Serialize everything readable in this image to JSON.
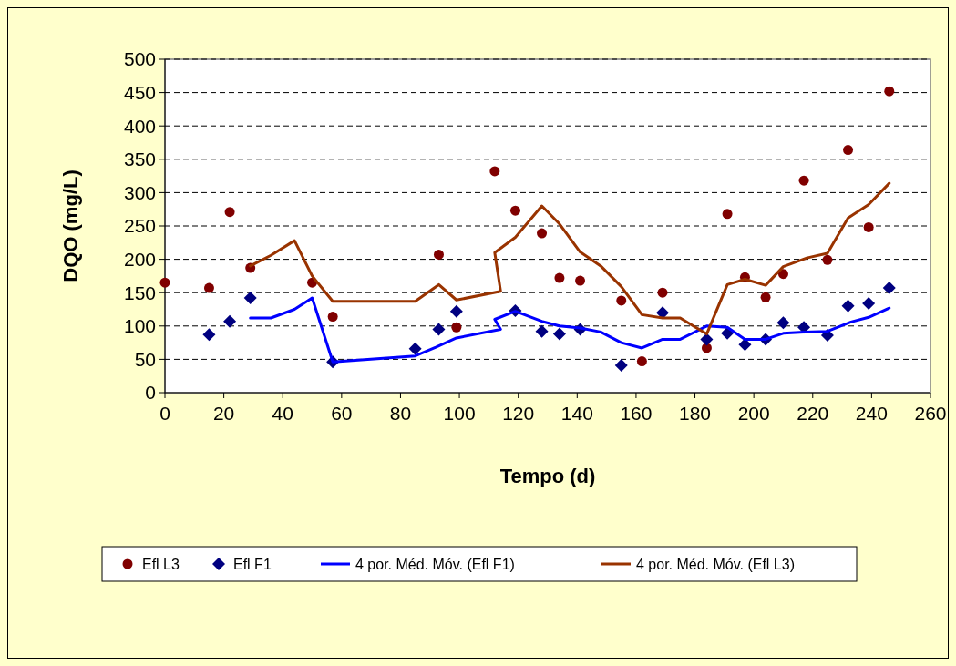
{
  "chart_data": {
    "type": "scatter",
    "xlabel": "Tempo (d)",
    "ylabel": "DQO (mg/L)",
    "xlim": [
      0,
      260
    ],
    "xticks": [
      0,
      20,
      40,
      60,
      80,
      100,
      120,
      140,
      160,
      180,
      200,
      220,
      240,
      260
    ],
    "ylim": [
      0,
      500
    ],
    "yticks": [
      0,
      50,
      100,
      150,
      200,
      250,
      300,
      350,
      400,
      450,
      500
    ],
    "grid": "y",
    "legend": "bottom",
    "series": [
      {
        "name": "Efl L3",
        "marker": "circle",
        "color": "#800000",
        "x": [
          0,
          15,
          22,
          29,
          50,
          57,
          93,
          99,
          112,
          119,
          128,
          134,
          141,
          155,
          162,
          169,
          184,
          191,
          197,
          204,
          210,
          217,
          225,
          232,
          239,
          246
        ],
        "values": [
          165,
          157,
          271,
          187,
          165,
          114,
          207,
          98,
          332,
          273,
          239,
          172,
          168,
          138,
          47,
          150,
          67,
          268,
          173,
          143,
          178,
          318,
          199,
          364,
          248,
          452
        ]
      },
      {
        "name": "Efl F1",
        "marker": "diamond",
        "color": "#000080",
        "x": [
          15,
          22,
          29,
          57,
          85,
          93,
          99,
          119,
          128,
          134,
          141,
          155,
          169,
          184,
          191,
          197,
          204,
          210,
          217,
          225,
          232,
          239,
          246
        ],
        "values": [
          87,
          107,
          142,
          46,
          66,
          95,
          122,
          123,
          92,
          88,
          95,
          41,
          120,
          80,
          89,
          72,
          80,
          105,
          98,
          86,
          130,
          134,
          157
        ]
      },
      {
        "name": "4 por. Méd. Móv. (Efl F1)",
        "type": "line",
        "marker": "none",
        "color": "#0000ff",
        "x": [
          29,
          36,
          44,
          50,
          57,
          85,
          92,
          99,
          114,
          112,
          119,
          128,
          134,
          141,
          148,
          155,
          162,
          169,
          175,
          184,
          191,
          197,
          204,
          210,
          217,
          225,
          233,
          239,
          246
        ],
        "values": [
          112,
          112,
          125,
          142,
          46,
          55,
          68,
          82,
          95,
          110,
          122,
          107,
          100,
          97,
          91,
          75,
          67,
          80,
          80,
          100,
          98,
          80,
          80,
          89,
          91,
          92,
          106,
          113,
          127
        ]
      },
      {
        "name": "4 por. Méd. Móv. (Efl L3)",
        "type": "line",
        "marker": "none",
        "color": "#993300",
        "x": [
          29,
          36,
          44,
          50,
          57,
          85,
          93,
          99,
          114,
          112,
          119,
          128,
          134,
          141,
          148,
          155,
          162,
          169,
          175,
          184,
          191,
          197,
          204,
          210,
          218,
          225,
          232,
          239,
          246
        ],
        "values": [
          190,
          206,
          228,
          175,
          137,
          137,
          162,
          139,
          152,
          210,
          233,
          280,
          253,
          211,
          190,
          159,
          117,
          112,
          112,
          88,
          162,
          170,
          161,
          189,
          202,
          209,
          262,
          282,
          314
        ]
      }
    ]
  }
}
